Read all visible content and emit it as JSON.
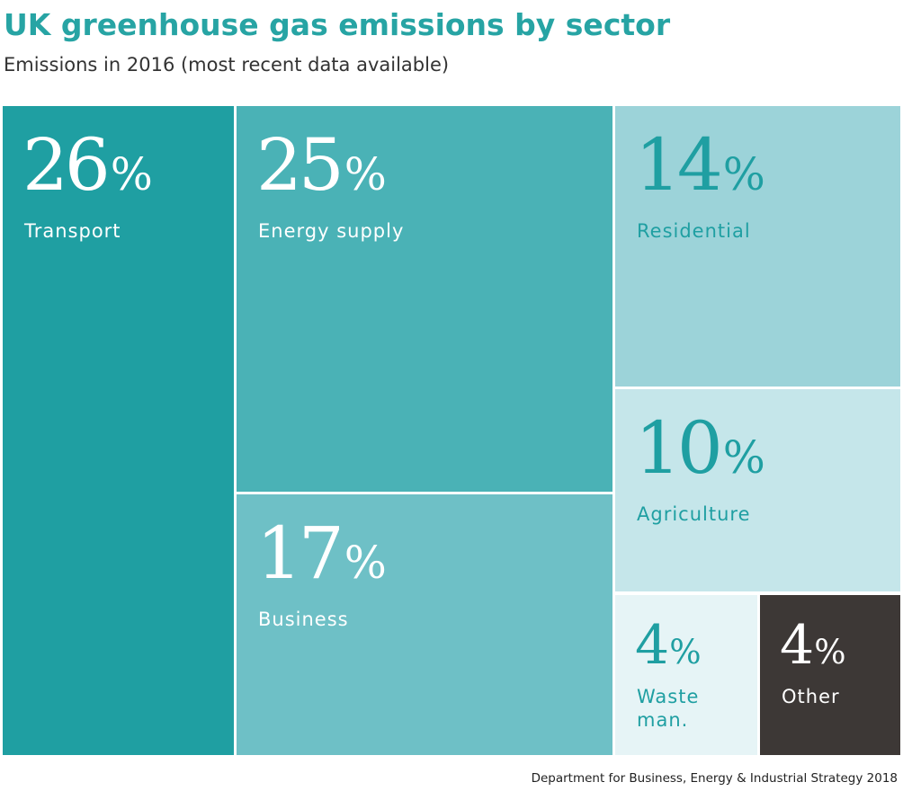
{
  "chart_data": {
    "type": "treemap",
    "title": "UK greenhouse gas emissions by sector",
    "subtitle": "Emissions in 2016 (most recent data available)",
    "unit": "%",
    "cells": [
      {
        "label": "Transport",
        "value": 26,
        "color": "#1f9fa2",
        "text_color": "#ffffff"
      },
      {
        "label": "Energy supply",
        "value": 25,
        "color": "#4ab2b6",
        "text_color": "#ffffff"
      },
      {
        "label": "Business",
        "value": 17,
        "color": "#6ec0c6",
        "text_color": "#ffffff"
      },
      {
        "label": "Residential",
        "value": 14,
        "color": "#9cd3d9",
        "text_color": "#1f9fa2"
      },
      {
        "label": "Agriculture",
        "value": 10,
        "color": "#c5e6ea",
        "text_color": "#1f9fa2"
      },
      {
        "label": "Waste\nman.",
        "value": 4,
        "color": "#e6f4f6",
        "text_color": "#1f9fa2"
      },
      {
        "label": "Other",
        "value": 4,
        "color": "#3d3836",
        "text_color": "#ffffff"
      }
    ],
    "source": "Department for Business, Energy & Industrial Strategy 2018"
  }
}
